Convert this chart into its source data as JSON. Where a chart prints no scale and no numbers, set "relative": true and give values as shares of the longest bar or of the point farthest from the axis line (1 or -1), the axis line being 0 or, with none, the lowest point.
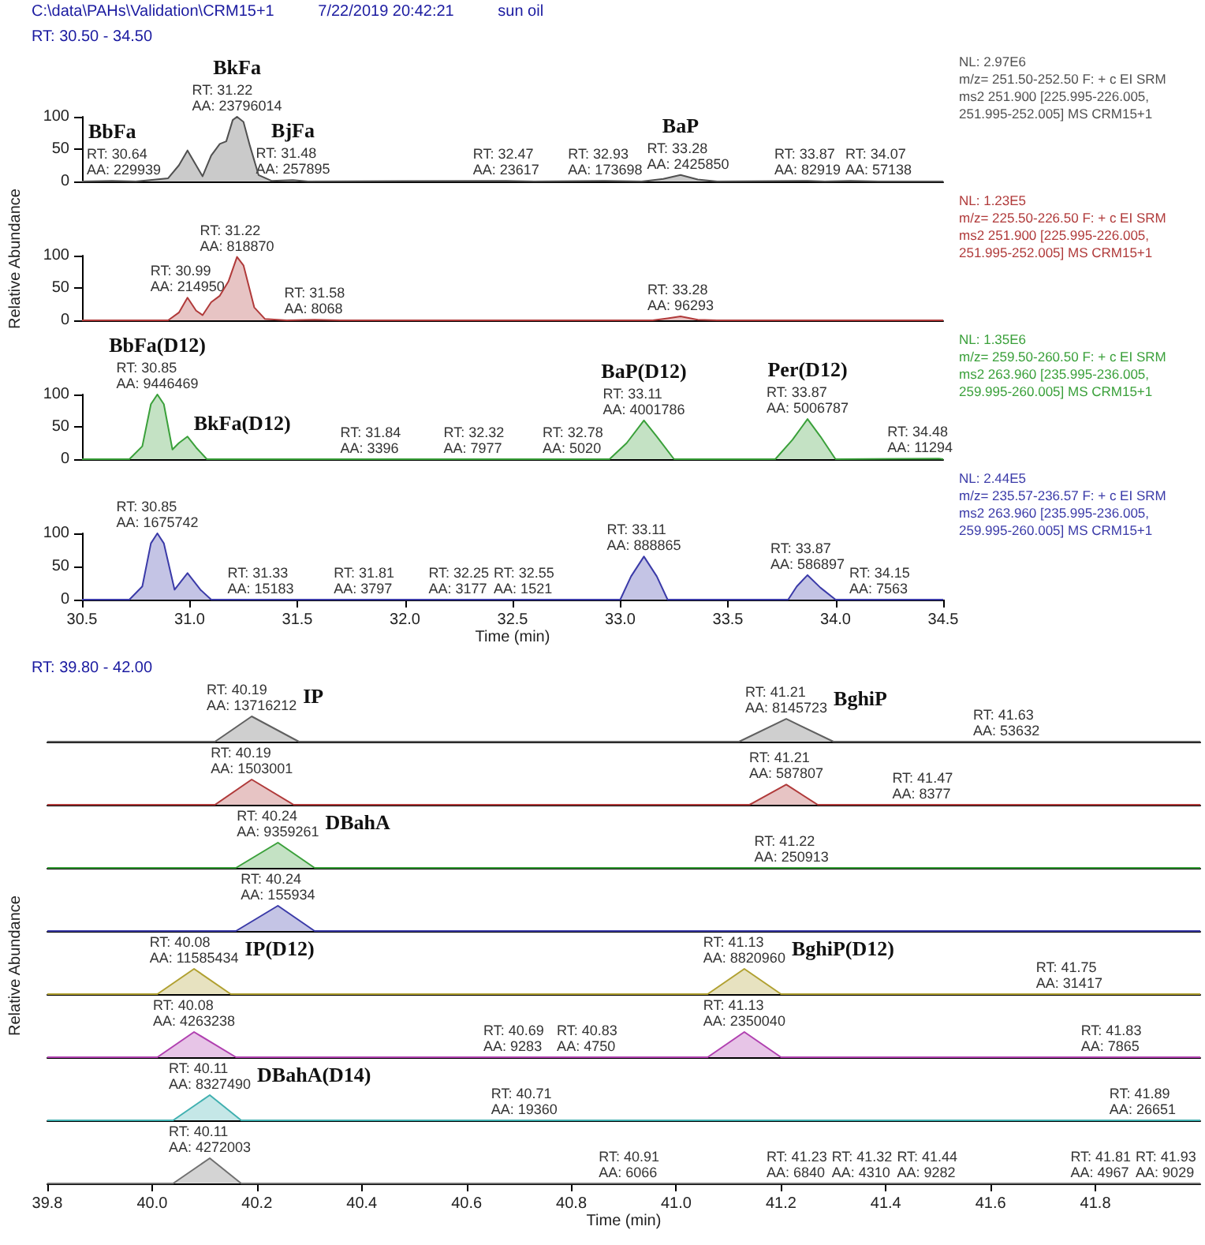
{
  "chart_data": [
    {
      "type": "area",
      "title": "C:\\data\\PAHs\\Validation\\CRM15+1          7/22/2019 20:42:21          sun oil",
      "subtitle": "RT: 30.50 - 34.50",
      "color": "#505050",
      "x": [
        30.5,
        30.64,
        30.75,
        30.9,
        30.95,
        30.99,
        31.03,
        31.06,
        31.1,
        31.14,
        31.17,
        31.2,
        31.22,
        31.25,
        31.28,
        31.32,
        31.38,
        31.48,
        31.55,
        32.47,
        32.6,
        32.93,
        33.1,
        33.2,
        33.28,
        33.36,
        33.45,
        33.87,
        33.95,
        34.07,
        34.2,
        34.5
      ],
      "values": [
        0,
        1,
        0,
        5,
        25,
        48,
        25,
        8,
        40,
        58,
        62,
        95,
        100,
        92,
        55,
        10,
        1,
        2,
        0,
        1,
        0,
        1,
        0,
        4,
        10,
        3,
        0,
        1,
        0,
        1,
        0,
        0
      ],
      "xlim": [
        30.5,
        34.5
      ],
      "ylim": [
        0,
        100
      ],
      "yticks": [
        0,
        50,
        100
      ],
      "tick_labels": "y",
      "value_labels": [
        null,
        "RT: 30.64\nAA: 229939",
        null,
        null,
        null,
        null,
        null,
        null,
        null,
        null,
        null,
        null,
        "RT: 31.22\nAA: 23796014",
        null,
        null,
        null,
        null,
        "RT: 31.48\nAA: 257895",
        null,
        "RT: 32.47\nAA: 23617",
        null,
        "RT: 32.93\nAA: 173698",
        null,
        null,
        "RT: 33.28\nAA: 2425850",
        null,
        null,
        "RT: 33.87\nAA: 82919",
        null,
        "RT: 34.07\nAA: 57138",
        null,
        null
      ],
      "annotations": [
        {
          "text": "BbFa",
          "x": 30.64,
          "y": 1
        },
        {
          "text": "BkFa",
          "x": 31.22,
          "y": 100
        },
        {
          "text": "BjFa",
          "x": 31.48,
          "y": 2
        },
        {
          "text": "BaP",
          "x": 33.28,
          "y": 10
        },
        "NL: 2.97E6",
        "m/z= 251.50-252.50 F: + c EI SRM",
        "ms2 251.900 [225.995-226.005,",
        "251.995-252.005]  MS CRM15+1"
      ]
    },
    {
      "type": "area",
      "ylabel": "Relative Abundance",
      "color": "#b03a3a",
      "x": [
        30.5,
        30.9,
        30.95,
        30.99,
        31.03,
        31.06,
        31.1,
        31.14,
        31.18,
        31.22,
        31.25,
        31.3,
        31.35,
        31.45,
        31.58,
        31.7,
        33.15,
        33.22,
        33.28,
        33.36,
        33.45,
        34.5
      ],
      "values": [
        0,
        0,
        12,
        35,
        15,
        8,
        28,
        38,
        60,
        98,
        85,
        20,
        2,
        0,
        1,
        0,
        0,
        3,
        6,
        1,
        0,
        0
      ],
      "xlim": [
        30.5,
        34.5
      ],
      "ylim": [
        0,
        100
      ],
      "yticks": [
        0,
        50,
        100
      ],
      "tick_labels": "y",
      "value_labels": [
        null,
        null,
        null,
        "RT: 30.99\nAA: 214950",
        null,
        null,
        null,
        null,
        null,
        "RT: 31.22\nAA: 818870",
        null,
        null,
        null,
        null,
        "RT: 31.58\nAA: 8068",
        null,
        null,
        null,
        "RT: 33.28\nAA: 96293",
        null,
        null,
        null
      ],
      "annotations": [
        "NL: 1.23E5",
        "m/z= 225.50-226.50 F: + c EI SRM",
        "ms2 251.900 [225.995-226.005,",
        "251.995-252.005]  MS CRM15+1"
      ]
    },
    {
      "type": "area",
      "color": "#3aa03a",
      "x": [
        30.5,
        30.72,
        30.78,
        30.82,
        30.85,
        30.88,
        30.92,
        30.95,
        30.99,
        31.03,
        31.08,
        31.84,
        32.32,
        32.78,
        32.95,
        33.03,
        33.11,
        33.17,
        33.25,
        33.72,
        33.8,
        33.87,
        33.93,
        34.0,
        34.48,
        34.5
      ],
      "values": [
        0,
        0,
        20,
        85,
        100,
        85,
        15,
        25,
        35,
        18,
        0,
        0,
        0,
        0,
        0,
        25,
        60,
        35,
        0,
        0,
        30,
        62,
        35,
        0,
        1,
        0
      ],
      "xlim": [
        30.5,
        34.5
      ],
      "ylim": [
        0,
        100
      ],
      "yticks": [
        0,
        50,
        100
      ],
      "tick_labels": "y",
      "value_labels": [
        null,
        null,
        null,
        null,
        "RT: 30.85\nAA: 9446469",
        null,
        null,
        null,
        null,
        null,
        null,
        "RT: 31.84\nAA: 3396",
        "RT: 32.32\nAA: 7977",
        "RT: 32.78\nAA: 5020",
        null,
        null,
        "RT: 33.11\nAA: 4001786",
        null,
        null,
        null,
        null,
        "RT: 33.87\nAA: 5006787",
        null,
        null,
        "RT: 34.48\nAA: 11294",
        null
      ],
      "annotations": [
        {
          "text": "BbFa(D12)",
          "x": 30.85,
          "y": 100
        },
        {
          "text": "BkFa(D12)",
          "x": 30.99,
          "y": 35
        },
        {
          "text": "BaP(D12)",
          "x": 33.11,
          "y": 60
        },
        {
          "text": "Per(D12)",
          "x": 33.87,
          "y": 62
        },
        "NL: 1.35E6",
        "m/z= 259.50-260.50 F: + c EI SRM",
        "ms2 263.960 [235.995-236.005,",
        "259.995-260.005]  MS CRM15+1"
      ]
    },
    {
      "type": "area",
      "xlabel": "Time (min)",
      "color": "#3a3aa8",
      "x": [
        30.5,
        30.72,
        30.78,
        30.82,
        30.85,
        30.88,
        30.93,
        30.99,
        31.05,
        31.1,
        31.33,
        31.81,
        32.25,
        32.55,
        33.0,
        33.05,
        33.11,
        33.17,
        33.22,
        33.78,
        33.82,
        33.87,
        33.93,
        34.0,
        34.15,
        34.5
      ],
      "values": [
        0,
        0,
        20,
        85,
        100,
        85,
        15,
        40,
        15,
        0,
        0,
        0,
        0,
        0,
        0,
        35,
        65,
        35,
        0,
        0,
        20,
        37,
        18,
        0,
        0,
        0
      ],
      "xlim": [
        30.5,
        34.5
      ],
      "xticks": [
        {
          "value": 30.5,
          "label": "30.5"
        },
        {
          "value": 31,
          "label": "31.0"
        },
        {
          "value": 31.5,
          "label": "31.5"
        },
        {
          "value": 32,
          "label": "32.0"
        },
        {
          "value": 32.5,
          "label": "32.5"
        },
        {
          "value": 33,
          "label": "33.0"
        },
        {
          "value": 33.5,
          "label": "33.5"
        },
        {
          "value": 34,
          "label": "34.0"
        },
        {
          "value": 34.5,
          "label": "34.5"
        }
      ],
      "ylim": [
        0,
        100
      ],
      "yticks": [
        0,
        50,
        100
      ],
      "value_labels": [
        null,
        null,
        null,
        null,
        "RT: 30.85\nAA: 1675742",
        null,
        null,
        null,
        null,
        null,
        "RT: 31.33\nAA: 15183",
        "RT: 31.81\nAA: 3797",
        "RT: 32.25\nAA: 3177",
        "RT: 32.55\nAA: 1521",
        null,
        null,
        "RT: 33.11\nAA: 888865",
        null,
        null,
        null,
        null,
        "RT: 33.87\nAA: 586897",
        null,
        null,
        "RT: 34.15\nAA: 7563",
        null
      ],
      "annotations": [
        "NL: 2.44E5",
        "m/z= 235.57-236.57 F: + c EI SRM",
        "ms2 263.960 [235.995-236.005,",
        "259.995-260.005]  MS CRM15+1"
      ]
    },
    {
      "type": "area",
      "subtitle": "RT: 39.80 - 42.00",
      "color": "#606060",
      "relative": true,
      "xlim": [
        39.8,
        42.0
      ],
      "tick_labels": false,
      "x": [
        39.8,
        40.12,
        40.19,
        40.28,
        41.12,
        41.21,
        41.3,
        41.63,
        42.0
      ],
      "values": [
        0,
        0,
        1,
        0,
        0,
        0.9,
        0,
        0,
        0
      ],
      "annotations": [
        {
          "text": "RT: 40.19\nAA: 13716212",
          "x": 40.19,
          "y": 1
        },
        {
          "text": "IP",
          "x": 40.19,
          "y": 1
        },
        {
          "text": "RT: 41.21\nAA: 8145723",
          "x": 41.21,
          "y": 0.9
        },
        {
          "text": "BghiP",
          "x": 41.21,
          "y": 0.9
        },
        {
          "text": "RT: 41.63\nAA: 53632",
          "x": 41.63,
          "y": 0
        }
      ]
    },
    {
      "type": "area",
      "color": "#b03a3a",
      "relative": true,
      "xlim": [
        39.8,
        42.0
      ],
      "tick_labels": false,
      "x": [
        39.8,
        40.12,
        40.19,
        40.27,
        41.14,
        41.21,
        41.27,
        41.47,
        42.0
      ],
      "values": [
        0,
        0,
        1,
        0,
        0,
        0.8,
        0,
        0,
        0
      ],
      "annotations": [
        {
          "text": "RT: 40.19\nAA: 1503001",
          "x": 40.19,
          "y": 1
        },
        {
          "text": "RT: 41.21\nAA: 587807",
          "x": 41.21,
          "y": 0.8
        },
        {
          "text": "RT: 41.47\nAA: 8377",
          "x": 41.47,
          "y": 0
        }
      ]
    },
    {
      "type": "area",
      "color": "#3aa03a",
      "relative": true,
      "xlim": [
        39.8,
        42.0
      ],
      "tick_labels": false,
      "x": [
        39.8,
        40.16,
        40.24,
        40.31,
        41.22,
        42.0
      ],
      "values": [
        0,
        0,
        1,
        0,
        0,
        0
      ],
      "annotations": [
        {
          "text": "RT: 40.24\nAA: 9359261",
          "x": 40.24,
          "y": 1
        },
        {
          "text": "DBahA",
          "x": 40.24,
          "y": 1
        },
        {
          "text": "RT: 41.22\nAA: 250913",
          "x": 41.22,
          "y": 0
        }
      ]
    },
    {
      "type": "area",
      "color": "#3a3aa8",
      "relative": true,
      "xlim": [
        39.8,
        42.0
      ],
      "tick_labels": false,
      "x": [
        39.8,
        40.16,
        40.24,
        40.31,
        42.0
      ],
      "values": [
        0,
        0,
        1,
        0,
        0
      ],
      "annotations": [
        {
          "text": "RT: 40.24\nAA: 155934",
          "x": 40.24,
          "y": 1
        }
      ]
    },
    {
      "type": "area",
      "ylabel": "Relative Abundance",
      "color": "#b0a030",
      "relative": true,
      "xlim": [
        39.8,
        42.0
      ],
      "tick_labels": false,
      "x": [
        39.8,
        40.01,
        40.08,
        40.15,
        41.06,
        41.13,
        41.2,
        41.75,
        42.0
      ],
      "values": [
        0,
        0,
        1,
        0,
        0,
        1,
        0,
        0,
        0
      ],
      "annotations": [
        {
          "text": "RT: 40.08\nAA: 11585434",
          "x": 40.08,
          "y": 1
        },
        {
          "text": "IP(D12)",
          "x": 40.08,
          "y": 1
        },
        {
          "text": "RT: 41.13\nAA: 8820960",
          "x": 41.13,
          "y": 1
        },
        {
          "text": "BghiP(D12)",
          "x": 41.13,
          "y": 1
        },
        {
          "text": "RT: 41.75\nAA: 31417",
          "x": 41.75,
          "y": 0
        }
      ]
    },
    {
      "type": "area",
      "color": "#b040b0",
      "relative": true,
      "xlim": [
        39.8,
        42.0
      ],
      "tick_labels": false,
      "x": [
        39.8,
        40.01,
        40.08,
        40.16,
        40.69,
        40.83,
        41.06,
        41.13,
        41.2,
        41.83,
        42.0
      ],
      "values": [
        0,
        0,
        1,
        0,
        0,
        0,
        0,
        1,
        0,
        0,
        0
      ],
      "annotations": [
        {
          "text": "RT: 40.08\nAA: 4263238",
          "x": 40.08,
          "y": 1
        },
        {
          "text": "RT: 40.69\nAA: 9283",
          "x": 40.69,
          "y": 0
        },
        {
          "text": "RT: 40.83\nAA: 4750",
          "x": 40.83,
          "y": 0
        },
        {
          "text": "RT: 41.13\nAA: 2350040",
          "x": 41.13,
          "y": 1
        },
        {
          "text": "RT: 41.83\nAA: 7865",
          "x": 41.83,
          "y": 0
        }
      ]
    },
    {
      "type": "area",
      "color": "#40b0b0",
      "relative": true,
      "xlim": [
        39.8,
        42.0
      ],
      "tick_labels": false,
      "x": [
        39.8,
        40.04,
        40.11,
        40.17,
        40.71,
        41.89,
        42.0
      ],
      "values": [
        0,
        0,
        1,
        0,
        0,
        0,
        0
      ],
      "annotations": [
        {
          "text": "RT: 40.11\nAA: 8327490",
          "x": 40.11,
          "y": 1
        },
        {
          "text": "DBahA(D14)",
          "x": 40.11,
          "y": 1
        },
        {
          "text": "RT: 40.71\nAA: 19360",
          "x": 40.71,
          "y": 0
        },
        {
          "text": "RT: 41.89\nAA: 26651",
          "x": 41.89,
          "y": 0
        }
      ]
    },
    {
      "type": "area",
      "xlabel": "Time (min)",
      "color": "#707070",
      "relative": true,
      "xlim": [
        39.8,
        42.0
      ],
      "tick_labels": "x",
      "xticks": [
        {
          "value": 39.8,
          "label": "39.8"
        },
        {
          "value": 40,
          "label": "40.0"
        },
        {
          "value": 40.2,
          "label": "40.2"
        },
        {
          "value": 40.4,
          "label": "40.4"
        },
        {
          "value": 40.6,
          "label": "40.6"
        },
        {
          "value": 40.8,
          "label": "40.8"
        },
        {
          "value": 41,
          "label": "41.0"
        },
        {
          "value": 41.2,
          "label": "41.2"
        },
        {
          "value": 41.4,
          "label": "41.4"
        },
        {
          "value": 41.6,
          "label": "41.6"
        },
        {
          "value": 41.8,
          "label": "41.8"
        }
      ],
      "x": [
        39.8,
        40.04,
        40.11,
        40.17,
        40.91,
        41.23,
        41.32,
        41.44,
        41.81,
        41.93,
        42.0
      ],
      "values": [
        0,
        0,
        1,
        0,
        0,
        0,
        0,
        0,
        0,
        0,
        0
      ],
      "annotations": [
        {
          "text": "RT: 40.11\nAA: 4272003",
          "x": 40.11,
          "y": 1
        },
        {
          "text": "RT: 40.91\nAA: 6066",
          "x": 40.91,
          "y": 0
        },
        {
          "text": "RT: 41.23\nAA: 6840",
          "x": 41.23,
          "y": 0
        },
        {
          "text": "RT: 41.32\nAA: 4310",
          "x": 41.32,
          "y": 0
        },
        {
          "text": "RT: 41.44\nAA: 9282",
          "x": 41.44,
          "y": 0
        },
        {
          "text": "RT: 41.81\nAA: 4967",
          "x": 41.81,
          "y": 0
        },
        {
          "text": "RT: 41.93\nAA: 9029",
          "x": 41.93,
          "y": 0
        }
      ]
    }
  ]
}
